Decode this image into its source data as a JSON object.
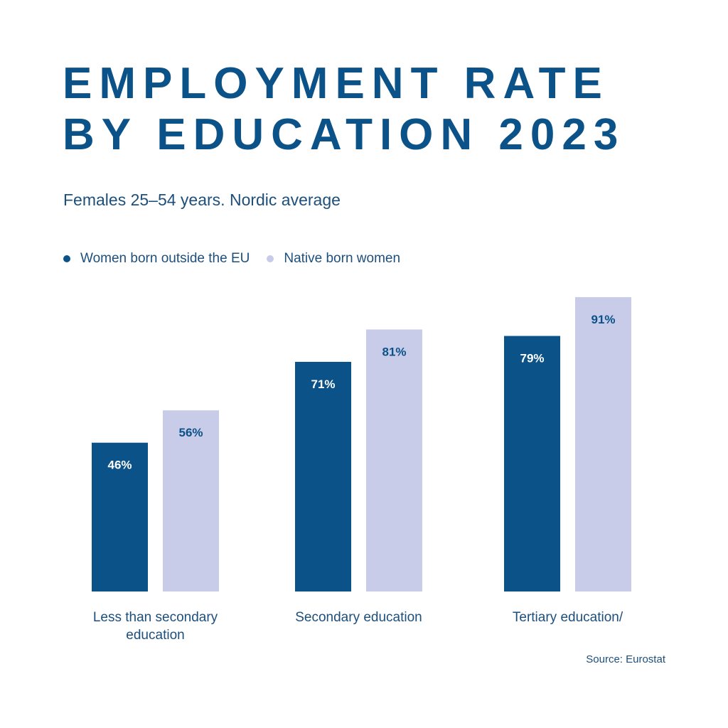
{
  "chart_data": {
    "type": "bar",
    "title": "EMPLOYMENT RATE BY EDUCATION 2023",
    "title_lines": [
      "EMPLOYMENT RATE",
      "BY EDUCATION 2023"
    ],
    "subtitle": "Females 25–54 years. Nordic average",
    "categories": [
      "Less than secondary education",
      "Secondary education",
      "Tertiary education/"
    ],
    "category_label_lines": [
      [
        "Less than secondary",
        "education"
      ],
      [
        "Secondary education"
      ],
      [
        "Tertiary education/"
      ]
    ],
    "series": [
      {
        "name": "Women born outside the EU",
        "values": [
          46,
          71,
          79
        ],
        "labels": [
          "46%",
          "71%",
          "79%"
        ],
        "color": "#0b5288",
        "label_color": "#ffffff"
      },
      {
        "name": "Native born women",
        "values": [
          56,
          81,
          91
        ],
        "labels": [
          "56%",
          "81%",
          "91%"
        ],
        "color": "#c8cce8",
        "label_color": "#0b5288"
      }
    ],
    "xlabel": "",
    "ylabel": "",
    "ylim": [
      0,
      100
    ],
    "grid": false,
    "legend": "top-left",
    "source": "Source: Eurostat"
  }
}
